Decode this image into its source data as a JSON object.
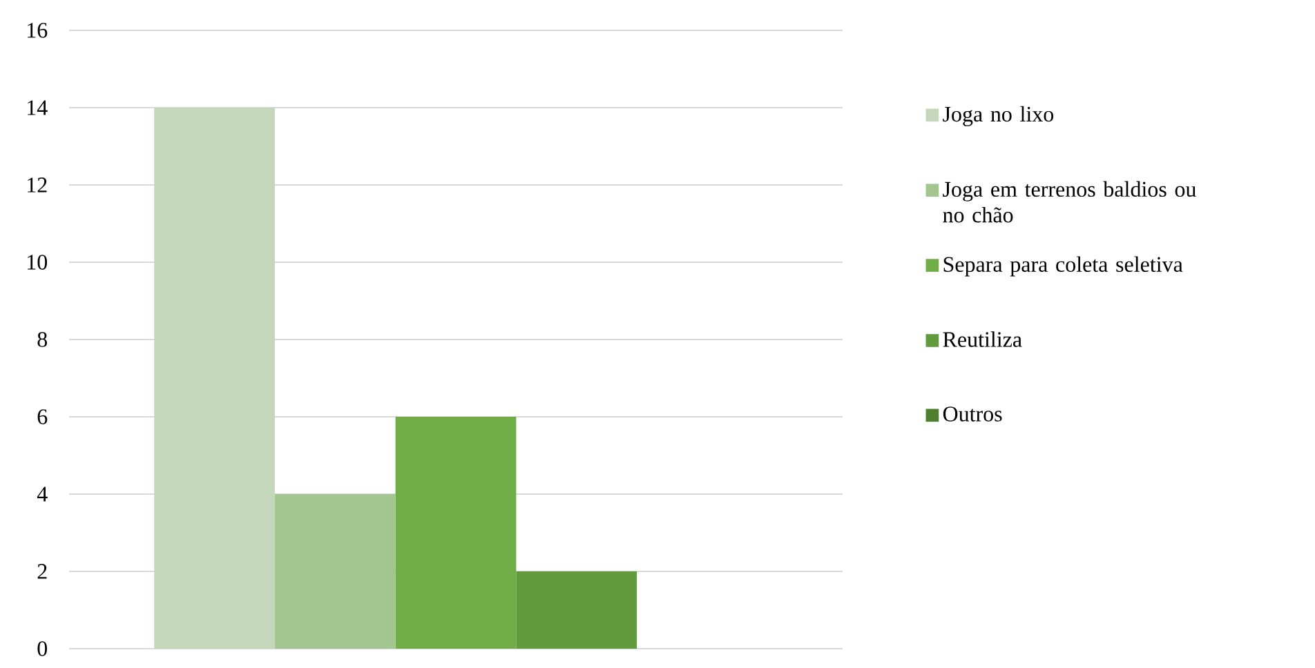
{
  "chart_data": {
    "type": "bar",
    "categories": [
      null
    ],
    "series": [
      {
        "name": "Joga no lixo",
        "color": "#c4d7bb",
        "values": [
          14
        ]
      },
      {
        "name": "Joga em terrenos baldios ou no chão",
        "color": "#a3c590",
        "values": [
          4
        ]
      },
      {
        "name": "Separa para coleta seletiva",
        "color": "#70ad47",
        "values": [
          6
        ]
      },
      {
        "name": "Reutiliza",
        "color": "#629b3e",
        "values": [
          2
        ]
      },
      {
        "name": "Outros",
        "color": "#4e7f2f",
        "values": [
          0
        ]
      }
    ],
    "ylim": [
      0,
      16
    ],
    "yticks": [
      0,
      2,
      4,
      6,
      8,
      10,
      12,
      14,
      16
    ],
    "grid": "y",
    "legend": "right"
  }
}
